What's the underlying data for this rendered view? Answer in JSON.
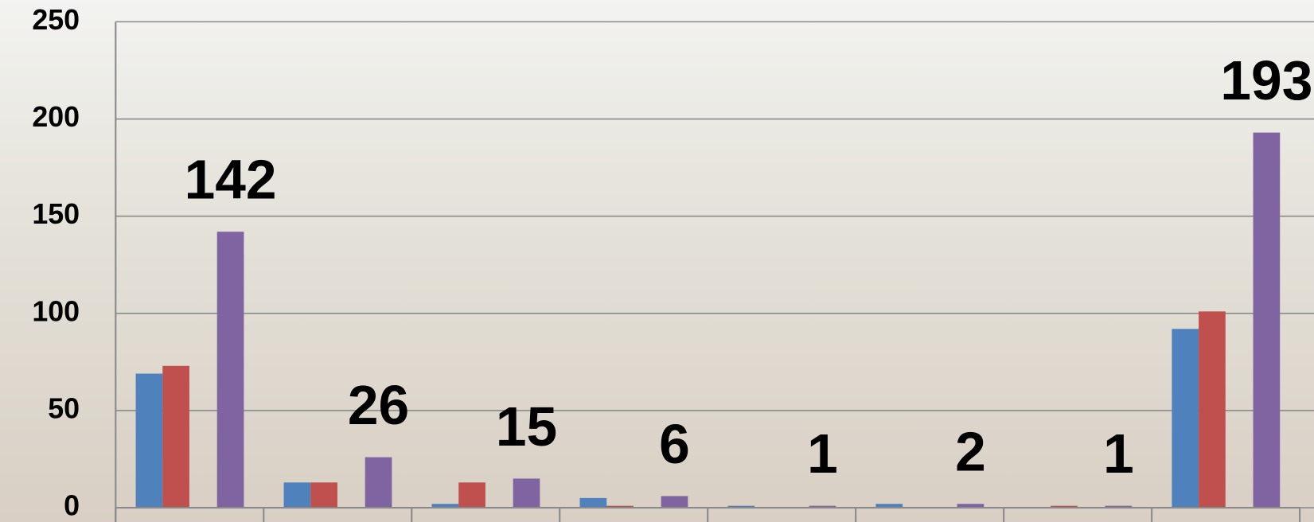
{
  "chart_data": {
    "type": "bar",
    "categories": [
      null,
      null,
      null,
      null,
      null,
      null,
      null,
      null
    ],
    "series": [
      {
        "color": "#4f81bd",
        "values": [
          69,
          13,
          2,
          5,
          1,
          2,
          0,
          92
        ]
      },
      {
        "color": "#c0504d",
        "values": [
          73,
          13,
          13,
          1,
          0,
          0,
          1,
          101
        ]
      },
      {
        "color": "#8064a2",
        "values": [
          142,
          26,
          15,
          6,
          1,
          2,
          1,
          193
        ],
        "data_labels": true
      }
    ],
    "ylim": [
      0,
      250
    ],
    "yticks": [
      0,
      50,
      100,
      150,
      200,
      250
    ],
    "grid": true
  }
}
